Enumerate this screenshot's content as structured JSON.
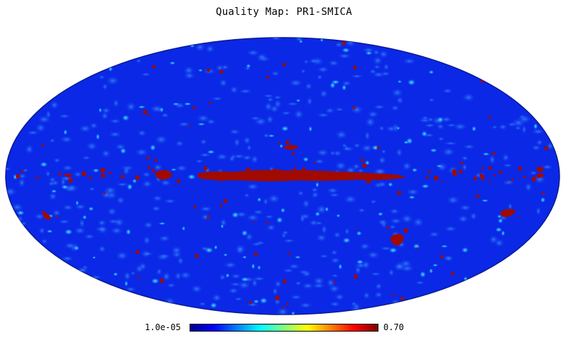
{
  "title": "Quality Map: PR1-SMICA",
  "colorbar": {
    "min_label": "1.0e-05",
    "max_label": "0.70",
    "colormap": [
      "#00008f",
      "#0000ff",
      "#0080ff",
      "#00ffff",
      "#80ff80",
      "#ffff00",
      "#ff8000",
      "#ff0000",
      "#800000"
    ]
  },
  "colors": {
    "background_field": "#0a28e6",
    "hot_spots": "#a00a00",
    "bright_spots": "#2fd8ff",
    "graticule_contour": "#1a1a70"
  },
  "projection": "mollweide"
}
